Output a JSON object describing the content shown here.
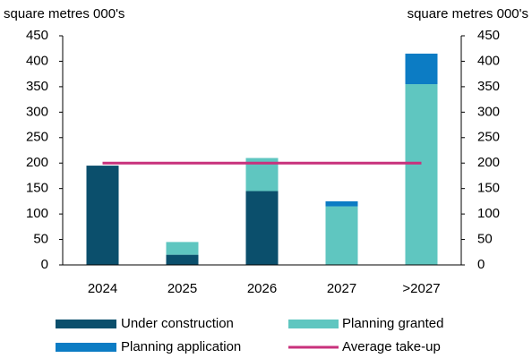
{
  "chart_data": {
    "type": "bar",
    "stacked": true,
    "ylabel": "square metres 000's",
    "y2label": "square metres 000's",
    "categories": [
      "2024",
      "2025",
      "2026",
      "2027",
      ">2027"
    ],
    "series": [
      {
        "name": "Under construction",
        "color": "#0b4f6c",
        "values": [
          195,
          20,
          145,
          0,
          0
        ]
      },
      {
        "name": "Planning granted",
        "color": "#5fc6c0",
        "values": [
          0,
          25,
          65,
          115,
          355
        ]
      },
      {
        "name": "Planning application",
        "color": "#0c7cc4",
        "values": [
          0,
          0,
          0,
          10,
          60
        ]
      },
      {
        "name": "Average take-up",
        "type": "line",
        "color": "#c8317c",
        "values": [
          200,
          200,
          200,
          200,
          200
        ]
      }
    ],
    "ylim": [
      0,
      450
    ],
    "yticks": [
      0,
      50,
      100,
      150,
      200,
      250,
      300,
      350,
      400,
      450
    ],
    "y2lim": [
      0,
      450
    ],
    "y2ticks": [
      0,
      50,
      100,
      150,
      200,
      250,
      300,
      350,
      400,
      450
    ],
    "grid": false,
    "legend": "bottom"
  }
}
